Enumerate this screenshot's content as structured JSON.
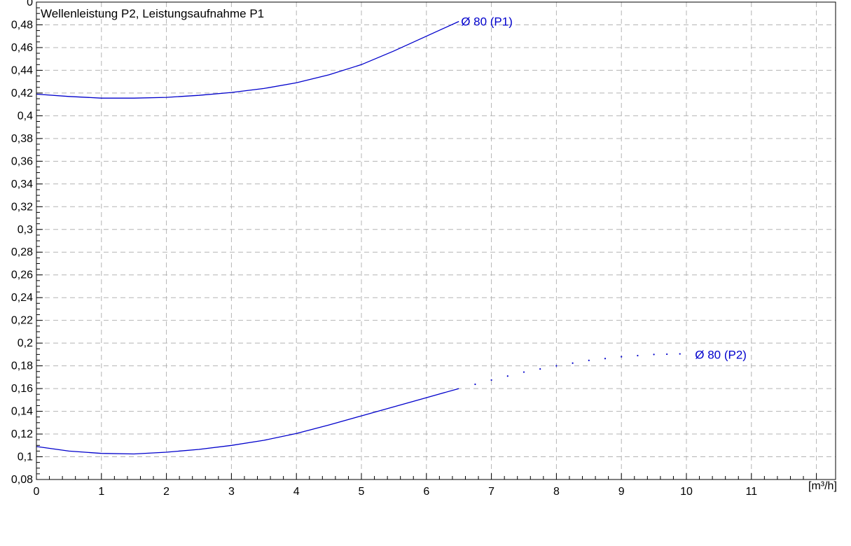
{
  "chart_data": {
    "type": "line",
    "title": "Wellenleistung P2, Leistungsaufnahme P1",
    "xlabel": "[m³/h]",
    "ylabel": "",
    "xlim": [
      0,
      12
    ],
    "ylim": [
      0.08,
      0.5
    ],
    "grid": true,
    "x_ticks": [
      "0",
      "1",
      "2",
      "3",
      "4",
      "5",
      "6",
      "7",
      "8",
      "9",
      "10",
      "11"
    ],
    "y_ticks": [
      "0,08",
      "0,1",
      "0,12",
      "0,14",
      "0,16",
      "0,18",
      "0,2",
      "0,22",
      "0,24",
      "0,26",
      "0,28",
      "0,3",
      "0,32",
      "0,34",
      "0,36",
      "0,38",
      "0,4",
      "0,42",
      "0,44",
      "0,46",
      "0,48",
      "0"
    ],
    "series_color": "#0000cc",
    "series": [
      {
        "name": "Ø 80 (P1)",
        "style": "solid",
        "x": [
          0,
          0.5,
          1,
          1.5,
          2,
          2.5,
          3,
          3.5,
          4,
          4.5,
          5,
          5.5,
          6,
          6.5
        ],
        "y": [
          0.419,
          0.417,
          0.4155,
          0.4155,
          0.4162,
          0.418,
          0.4205,
          0.424,
          0.429,
          0.436,
          0.445,
          0.457,
          0.47,
          0.483
        ]
      },
      {
        "name": "Ø 80 (P2)",
        "style": "solid",
        "x": [
          0,
          0.5,
          1,
          1.5,
          2,
          2.5,
          3,
          3.5,
          4,
          4.5,
          5,
          5.5,
          6,
          6.5
        ],
        "y": [
          0.109,
          0.105,
          0.103,
          0.1025,
          0.104,
          0.1065,
          0.11,
          0.1145,
          0.1205,
          0.128,
          0.136,
          0.144,
          0.152,
          0.16
        ]
      },
      {
        "name": "",
        "style": "dotted",
        "x": [
          6.5,
          7,
          7.5,
          8,
          8.5,
          9,
          9.5,
          9.9
        ],
        "y": [
          0.16,
          0.1675,
          0.1745,
          0.18,
          0.1848,
          0.188,
          0.19,
          0.1905
        ]
      }
    ],
    "annotations": [
      {
        "text": "Ø 80 (P1)",
        "x": 6.5,
        "y": 0.483
      },
      {
        "text": "Ø 80 (P2)",
        "x": 10.1,
        "y": 0.19
      }
    ]
  }
}
